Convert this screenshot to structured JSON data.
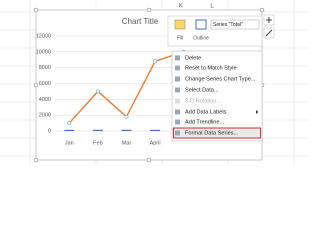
{
  "column_headers": [
    "K",
    "L"
  ],
  "chart_data": {
    "type": "line",
    "title": "Chart Title",
    "categories": [
      "Jan",
      "Feb",
      "Mar",
      "April",
      null
    ],
    "series": [
      {
        "color": "#ed7d31",
        "values": [
          1000,
          5000,
          1800,
          8800,
          10000
        ]
      },
      {
        "type": "bar",
        "color": "#4472c4",
        "values": [
          150,
          150,
          150,
          150,
          150
        ]
      }
    ],
    "ylim": [
      0,
      12000
    ],
    "yticks": [
      0,
      2000,
      4000,
      6000,
      8000,
      10000,
      12000
    ],
    "grid": true
  },
  "toolbar": {
    "fill": "Fill",
    "outline": "Outline",
    "series_selector": "Series \"Total\""
  },
  "menu": {
    "items": [
      {
        "label": "Delete"
      },
      {
        "label": "Reset to Match Style"
      },
      {
        "label": "Change Series Chart Type..."
      },
      {
        "label": "Select Data..."
      },
      {
        "label": "3-D Rotation...",
        "disabled": true
      },
      {
        "label": "Add Data Labels",
        "submenu": true
      },
      {
        "label": "Add Trendline..."
      },
      {
        "label": "Format Data Series...",
        "highlighted": true
      }
    ]
  }
}
